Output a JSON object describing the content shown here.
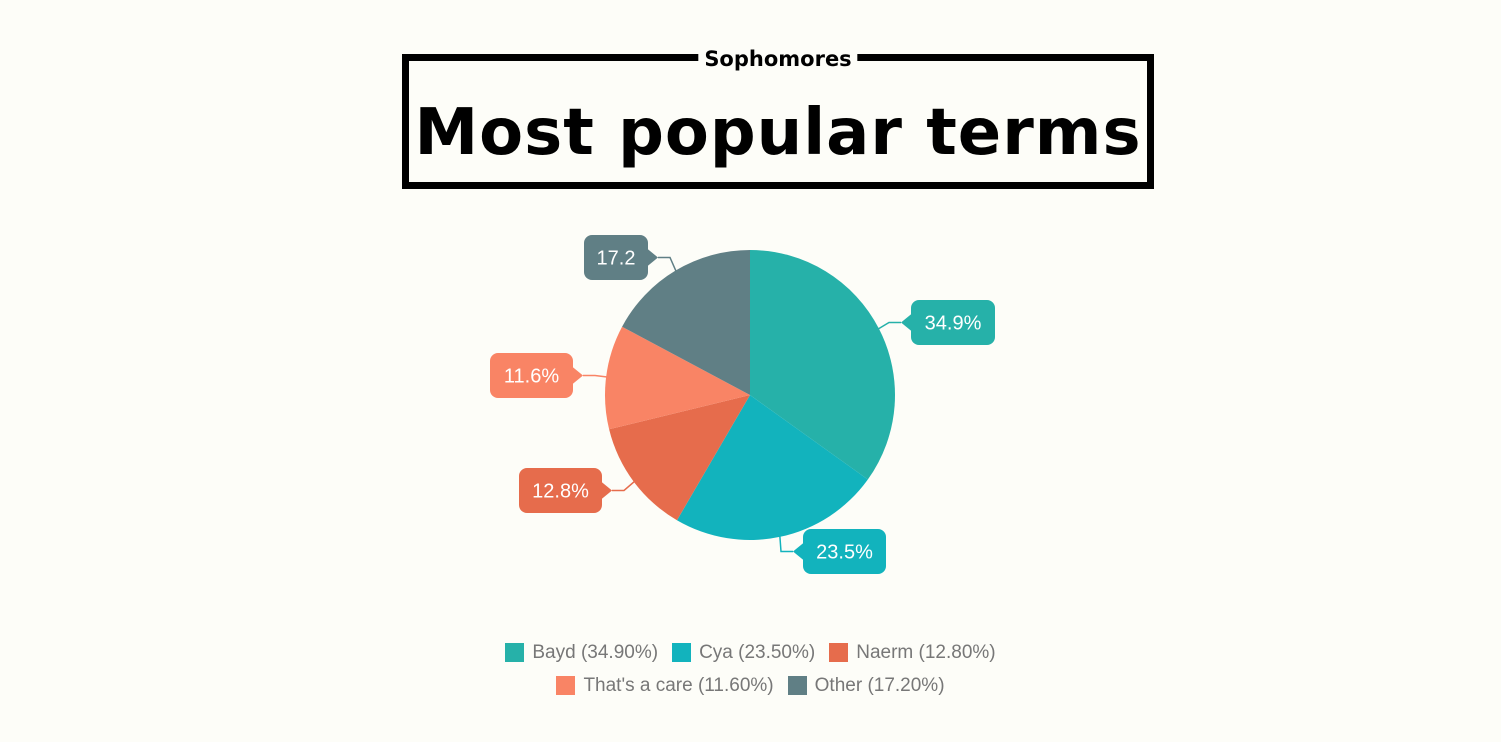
{
  "header": {
    "subtitle": "Sophomores",
    "title": "Most popular terms"
  },
  "chart_data": {
    "type": "pie",
    "title": "Most popular terms",
    "subtitle": "Sophomores",
    "slices": [
      {
        "name": "Bayd",
        "value": 34.9,
        "label": "34.9%",
        "legend": "Bayd (34.90%)",
        "color": "#26b1a9"
      },
      {
        "name": "Cya",
        "value": 23.5,
        "label": "23.5%",
        "legend": "Cya (23.50%)",
        "color": "#12b3bd"
      },
      {
        "name": "Naerm",
        "value": 12.8,
        "label": "12.8%",
        "legend": "Naerm (12.80%)",
        "color": "#e66c4c"
      },
      {
        "name": "That's a care",
        "value": 11.6,
        "label": "11.6%",
        "legend": "That's a care (11.60%)",
        "color": "#f98465"
      },
      {
        "name": "Other",
        "value": 17.2,
        "label": "17.2",
        "legend": "Other (17.20%)",
        "color": "#607f85"
      }
    ],
    "legend_position": "bottom"
  }
}
